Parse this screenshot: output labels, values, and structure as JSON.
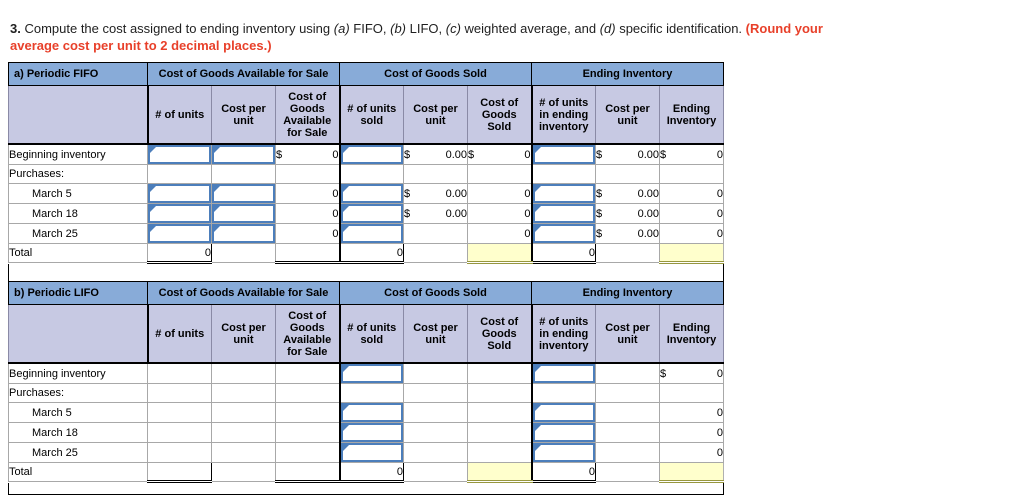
{
  "title": {
    "segments": [
      {
        "text": "3.",
        "style": "bold"
      },
      {
        "text": " Compute the cost assigned to ending inventory using ",
        "style": "normal"
      },
      {
        "text": "(a)",
        "style": "italic"
      },
      {
        "text": " FIFO, ",
        "style": "normal"
      },
      {
        "text": "(b)",
        "style": "italic"
      },
      {
        "text": " LIFO, ",
        "style": "normal"
      },
      {
        "text": "(c)",
        "style": "italic"
      },
      {
        "text": " weighted average, and ",
        "style": "normal"
      },
      {
        "text": "(d)",
        "style": "italic"
      },
      {
        "text": " specific identification. ",
        "style": "normal"
      },
      {
        "text": "(Round your average cost per unit to 2 decimal places.)",
        "style": "bold-red"
      }
    ]
  },
  "colors": {
    "header_blue": "#88abd8",
    "subheader_lavender": "#c7c9e3",
    "input_border_blue": "#4c7ebb",
    "highlight_yellow": "#ffffcc",
    "emphasis_red": "#e8402a"
  },
  "column_keys": [
    "units",
    "cost-per-unit",
    "cost-of-goods-available",
    "units-sold",
    "cogs-cost-per-unit",
    "cost-of-goods-sold",
    "units-in-ending-inventory",
    "ei-cost-per-unit",
    "ending-inventory"
  ],
  "tables": [
    {
      "key": "a",
      "label": "a) Periodic FIFO",
      "groups": [
        "Cost of Goods Available for Sale",
        "Cost of Goods Sold",
        "Ending Inventory"
      ],
      "columns": [
        "# of units",
        "Cost per unit",
        "Cost of Goods Available for Sale",
        "# of units sold",
        "Cost per unit",
        "Cost of Goods Sold",
        "# of units in ending inventory",
        "Cost per unit",
        "Ending Inventory"
      ],
      "rows": [
        {
          "key": "beginning-inventory",
          "label": "Beginning inventory",
          "indent": false,
          "cells": [
            {
              "type": "input"
            },
            {
              "type": "input"
            },
            {
              "type": "money",
              "currency": "$",
              "value": "0"
            },
            {
              "type": "input"
            },
            {
              "type": "money",
              "currency": "$",
              "value": "0.00"
            },
            {
              "type": "money",
              "currency": "$",
              "value": "0"
            },
            {
              "type": "input"
            },
            {
              "type": "money",
              "currency": "$",
              "value": "0.00"
            },
            {
              "type": "money",
              "currency": "$",
              "value": "0"
            }
          ]
        },
        {
          "key": "purchases",
          "label": "Purchases:",
          "indent": false,
          "cells": [
            {
              "type": "blank"
            },
            {
              "type": "blank"
            },
            {
              "type": "blank"
            },
            {
              "type": "blank"
            },
            {
              "type": "blank"
            },
            {
              "type": "blank"
            },
            {
              "type": "blank"
            },
            {
              "type": "blank"
            },
            {
              "type": "blank"
            }
          ]
        },
        {
          "key": "march-5",
          "label": "March 5",
          "indent": true,
          "cells": [
            {
              "type": "input"
            },
            {
              "type": "input"
            },
            {
              "type": "money",
              "value": "0"
            },
            {
              "type": "input"
            },
            {
              "type": "money",
              "currency": "$",
              "value": "0.00"
            },
            {
              "type": "money",
              "value": "0"
            },
            {
              "type": "input"
            },
            {
              "type": "money",
              "currency": "$",
              "value": "0.00"
            },
            {
              "type": "money",
              "value": "0"
            }
          ]
        },
        {
          "key": "march-18",
          "label": "March 18",
          "indent": true,
          "cells": [
            {
              "type": "input"
            },
            {
              "type": "input"
            },
            {
              "type": "money",
              "value": "0"
            },
            {
              "type": "input"
            },
            {
              "type": "money",
              "currency": "$",
              "value": "0.00"
            },
            {
              "type": "money",
              "value": "0"
            },
            {
              "type": "input"
            },
            {
              "type": "money",
              "currency": "$",
              "value": "0.00"
            },
            {
              "type": "money",
              "value": "0"
            }
          ]
        },
        {
          "key": "march-25",
          "label": "March 25",
          "indent": true,
          "cells": [
            {
              "type": "input"
            },
            {
              "type": "input"
            },
            {
              "type": "money",
              "value": "0"
            },
            {
              "type": "input"
            },
            {
              "type": "blank"
            },
            {
              "type": "money",
              "value": "0"
            },
            {
              "type": "input"
            },
            {
              "type": "money",
              "currency": "$",
              "value": "0.00"
            },
            {
              "type": "money",
              "value": "0"
            }
          ]
        },
        {
          "key": "total",
          "label": "Total",
          "indent": false,
          "cells": [
            {
              "type": "total",
              "value": "0"
            },
            {
              "type": "blank"
            },
            {
              "type": "total",
              "value": ""
            },
            {
              "type": "total",
              "value": "0"
            },
            {
              "type": "blank"
            },
            {
              "type": "yellow"
            },
            {
              "type": "total",
              "value": "0"
            },
            {
              "type": "blank"
            },
            {
              "type": "yellow"
            }
          ]
        }
      ]
    },
    {
      "key": "b",
      "label": "b) Periodic LIFO",
      "groups": [
        "Cost of Goods Available for Sale",
        "Cost of Goods Sold",
        "Ending Inventory"
      ],
      "columns": [
        "# of units",
        "Cost per unit",
        "Cost of Goods Available for Sale",
        "# of units sold",
        "Cost per unit",
        "Cost of Goods Sold",
        "# of units in ending inventory",
        "Cost per unit",
        "Ending Inventory"
      ],
      "rows": [
        {
          "key": "beginning-inventory",
          "label": "Beginning inventory",
          "indent": false,
          "cells": [
            {
              "type": "blank"
            },
            {
              "type": "blank"
            },
            {
              "type": "blank"
            },
            {
              "type": "input"
            },
            {
              "type": "blank"
            },
            {
              "type": "blank"
            },
            {
              "type": "input"
            },
            {
              "type": "blank"
            },
            {
              "type": "money",
              "currency": "$",
              "value": "0"
            }
          ]
        },
        {
          "key": "purchases",
          "label": "Purchases:",
          "indent": false,
          "cells": [
            {
              "type": "blank"
            },
            {
              "type": "blank"
            },
            {
              "type": "blank"
            },
            {
              "type": "blank"
            },
            {
              "type": "blank"
            },
            {
              "type": "blank"
            },
            {
              "type": "blank"
            },
            {
              "type": "blank"
            },
            {
              "type": "blank"
            }
          ]
        },
        {
          "key": "march-5",
          "label": "March 5",
          "indent": true,
          "cells": [
            {
              "type": "blank"
            },
            {
              "type": "blank"
            },
            {
              "type": "blank"
            },
            {
              "type": "input"
            },
            {
              "type": "blank"
            },
            {
              "type": "blank"
            },
            {
              "type": "input"
            },
            {
              "type": "blank"
            },
            {
              "type": "money",
              "value": "0"
            }
          ]
        },
        {
          "key": "march-18",
          "label": "March 18",
          "indent": true,
          "cells": [
            {
              "type": "blank"
            },
            {
              "type": "blank"
            },
            {
              "type": "blank"
            },
            {
              "type": "input"
            },
            {
              "type": "blank"
            },
            {
              "type": "blank"
            },
            {
              "type": "input"
            },
            {
              "type": "blank"
            },
            {
              "type": "money",
              "value": "0"
            }
          ]
        },
        {
          "key": "march-25",
          "label": "March 25",
          "indent": true,
          "cells": [
            {
              "type": "blank"
            },
            {
              "type": "blank"
            },
            {
              "type": "blank"
            },
            {
              "type": "input"
            },
            {
              "type": "blank"
            },
            {
              "type": "blank"
            },
            {
              "type": "input"
            },
            {
              "type": "blank"
            },
            {
              "type": "money",
              "value": "0"
            }
          ]
        },
        {
          "key": "total",
          "label": "Total",
          "indent": false,
          "cells": [
            {
              "type": "total",
              "value": ""
            },
            {
              "type": "blank"
            },
            {
              "type": "total",
              "value": ""
            },
            {
              "type": "total",
              "value": "0"
            },
            {
              "type": "blank"
            },
            {
              "type": "yellow"
            },
            {
              "type": "total",
              "value": "0"
            },
            {
              "type": "blank"
            },
            {
              "type": "yellow"
            }
          ]
        }
      ]
    }
  ]
}
